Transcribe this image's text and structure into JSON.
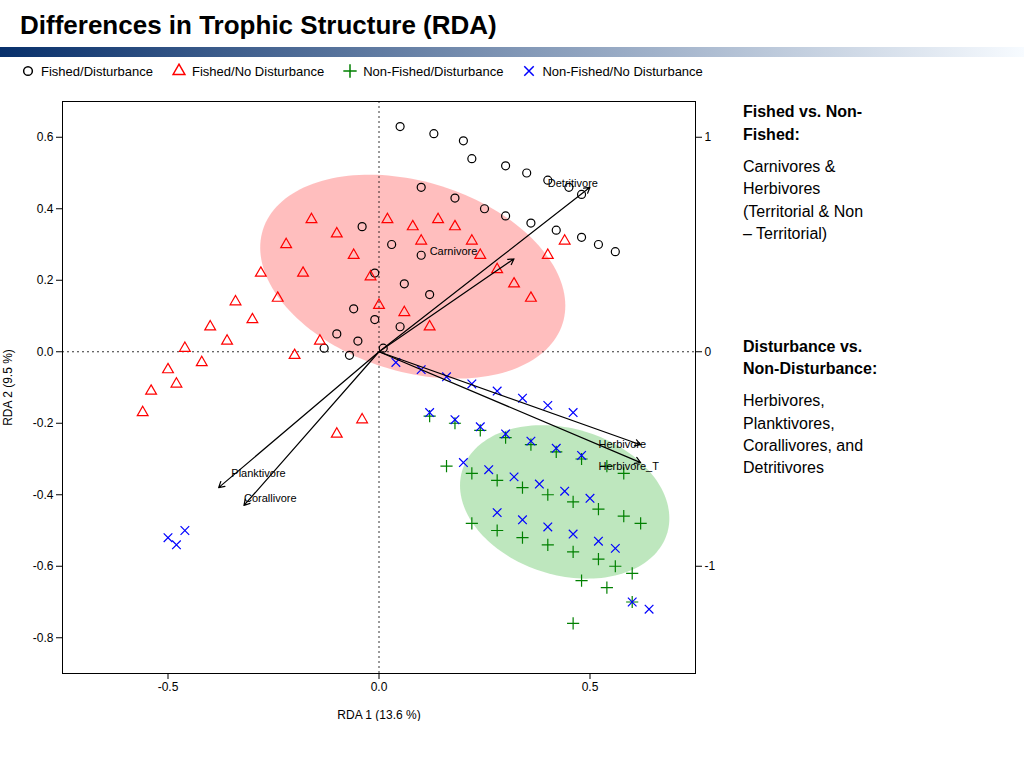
{
  "chart_data": {
    "type": "scatter",
    "title": "Differences in Trophic Structure (RDA)",
    "xlabel": "RDA 1 (13.6 %)",
    "ylabel": "RDA 2 (9.5 %)",
    "xlim": [
      -0.75,
      0.75
    ],
    "ylim": [
      -0.9,
      0.7
    ],
    "xticks": [
      -0.5,
      {
        "value": 0,
        "label": "0.0"
      },
      0.5
    ],
    "yticks": [
      -0.8,
      -0.6,
      -0.4,
      -0.2,
      {
        "value": 0,
        "label": "0.0"
      },
      0.2,
      0.4,
      0.6
    ],
    "y2lim": [
      -0.9,
      0.7
    ],
    "y2ticks": [
      {
        "value": 0.6,
        "label": "1"
      },
      0,
      {
        "value": -0.6,
        "label": "-1"
      }
    ],
    "grid": false,
    "legend": "upper left",
    "reference_lines": {
      "x": [
        0
      ],
      "y": [
        0
      ]
    },
    "series": [
      {
        "name": "Fished/Disturbance",
        "color": "black",
        "marker": "circle",
        "values": [
          [
            0.05,
            0.63
          ],
          [
            0.13,
            0.61
          ],
          [
            0.2,
            0.59
          ],
          [
            0.22,
            0.54
          ],
          [
            0.3,
            0.52
          ],
          [
            0.35,
            0.5
          ],
          [
            0.4,
            0.48
          ],
          [
            0.45,
            0.46
          ],
          [
            0.48,
            0.44
          ],
          [
            0.1,
            0.46
          ],
          [
            0.18,
            0.43
          ],
          [
            0.25,
            0.4
          ],
          [
            0.3,
            0.38
          ],
          [
            0.36,
            0.36
          ],
          [
            0.42,
            0.34
          ],
          [
            0.48,
            0.32
          ],
          [
            0.52,
            0.3
          ],
          [
            0.56,
            0.28
          ],
          [
            -0.04,
            0.35
          ],
          [
            0.03,
            0.3
          ],
          [
            0.1,
            0.27
          ],
          [
            -0.01,
            0.22
          ],
          [
            0.06,
            0.19
          ],
          [
            0.12,
            0.16
          ],
          [
            -0.06,
            0.12
          ],
          [
            -0.01,
            0.09
          ],
          [
            0.05,
            0.07
          ],
          [
            -0.1,
            0.05
          ],
          [
            -0.05,
            0.03
          ],
          [
            0.01,
            0.01
          ],
          [
            -0.13,
            0.01
          ],
          [
            -0.07,
            -0.01
          ]
        ]
      },
      {
        "name": "Fished/No Disturbance",
        "color": "red",
        "marker": "triangle",
        "values": [
          [
            -0.16,
            0.37
          ],
          [
            -0.22,
            0.3
          ],
          [
            -0.28,
            0.22
          ],
          [
            -0.34,
            0.14
          ],
          [
            -0.4,
            0.07
          ],
          [
            -0.46,
            0.01
          ],
          [
            -0.5,
            -0.05
          ],
          [
            -0.54,
            -0.11
          ],
          [
            -0.56,
            -0.17
          ],
          [
            -0.18,
            0.22
          ],
          [
            -0.24,
            0.15
          ],
          [
            -0.3,
            0.09
          ],
          [
            -0.36,
            0.03
          ],
          [
            -0.42,
            -0.03
          ],
          [
            -0.48,
            -0.09
          ],
          [
            -0.1,
            0.33
          ],
          [
            -0.06,
            0.27
          ],
          [
            -0.02,
            0.21
          ],
          [
            0.02,
            0.37
          ],
          [
            0.08,
            0.35
          ],
          [
            0.1,
            0.31
          ],
          [
            0.14,
            0.37
          ],
          [
            0.18,
            0.35
          ],
          [
            0.22,
            0.31
          ],
          [
            0.24,
            0.27
          ],
          [
            0.28,
            0.23
          ],
          [
            0.32,
            0.19
          ],
          [
            0.36,
            0.15
          ],
          [
            0.4,
            0.27
          ],
          [
            0.44,
            0.31
          ],
          [
            0.0,
            0.13
          ],
          [
            0.06,
            0.11
          ],
          [
            0.12,
            0.07
          ],
          [
            -0.04,
            -0.19
          ],
          [
            -0.1,
            -0.23
          ],
          [
            -0.14,
            0.03
          ],
          [
            -0.2,
            -0.01
          ]
        ]
      },
      {
        "name": "Non-Fished/Disturbance",
        "color": "green",
        "marker": "plus",
        "values": [
          [
            0.12,
            -0.18
          ],
          [
            0.18,
            -0.2
          ],
          [
            0.24,
            -0.22
          ],
          [
            0.3,
            -0.24
          ],
          [
            0.36,
            -0.26
          ],
          [
            0.42,
            -0.28
          ],
          [
            0.48,
            -0.3
          ],
          [
            0.54,
            -0.32
          ],
          [
            0.58,
            -0.34
          ],
          [
            0.16,
            -0.32
          ],
          [
            0.22,
            -0.34
          ],
          [
            0.28,
            -0.36
          ],
          [
            0.34,
            -0.38
          ],
          [
            0.4,
            -0.4
          ],
          [
            0.46,
            -0.42
          ],
          [
            0.52,
            -0.44
          ],
          [
            0.58,
            -0.46
          ],
          [
            0.62,
            -0.48
          ],
          [
            0.22,
            -0.48
          ],
          [
            0.28,
            -0.5
          ],
          [
            0.34,
            -0.52
          ],
          [
            0.4,
            -0.54
          ],
          [
            0.46,
            -0.56
          ],
          [
            0.52,
            -0.58
          ],
          [
            0.56,
            -0.6
          ],
          [
            0.6,
            -0.62
          ],
          [
            0.48,
            -0.64
          ],
          [
            0.54,
            -0.66
          ],
          [
            0.6,
            -0.7
          ],
          [
            0.46,
            -0.76
          ]
        ]
      },
      {
        "name": "Non-Fished/No Disturbance",
        "color": "blue",
        "marker": "times",
        "values": [
          [
            0.04,
            -0.03
          ],
          [
            0.1,
            -0.05
          ],
          [
            0.16,
            -0.07
          ],
          [
            0.22,
            -0.09
          ],
          [
            0.28,
            -0.11
          ],
          [
            0.34,
            -0.13
          ],
          [
            0.4,
            -0.15
          ],
          [
            0.46,
            -0.17
          ],
          [
            0.12,
            -0.17
          ],
          [
            0.18,
            -0.19
          ],
          [
            0.24,
            -0.21
          ],
          [
            0.3,
            -0.23
          ],
          [
            0.36,
            -0.25
          ],
          [
            0.42,
            -0.27
          ],
          [
            0.48,
            -0.29
          ],
          [
            0.2,
            -0.31
          ],
          [
            0.26,
            -0.33
          ],
          [
            0.32,
            -0.35
          ],
          [
            0.38,
            -0.37
          ],
          [
            0.44,
            -0.39
          ],
          [
            0.5,
            -0.41
          ],
          [
            0.28,
            -0.45
          ],
          [
            0.34,
            -0.47
          ],
          [
            0.4,
            -0.49
          ],
          [
            0.46,
            -0.51
          ],
          [
            0.52,
            -0.53
          ],
          [
            0.56,
            -0.55
          ],
          [
            0.6,
            -0.7
          ],
          [
            0.64,
            -0.72
          ],
          [
            -0.46,
            -0.5
          ],
          [
            -0.5,
            -0.52
          ],
          [
            -0.48,
            -0.54
          ]
        ]
      }
    ],
    "ellipses": [
      {
        "cx": 0.08,
        "cy": 0.21,
        "width": 0.76,
        "height": 0.52,
        "angle": -25,
        "color": "#ff4444"
      },
      {
        "cx": 0.44,
        "cy": -0.42,
        "width": 0.52,
        "height": 0.4,
        "angle": -28,
        "color": "#44bb44"
      }
    ],
    "arrow_origin": [
      0,
      0
    ],
    "arrows": [
      {
        "x": 0.32,
        "y": 0.26,
        "label": "Carnivore",
        "label_x": 0.12,
        "label_y": 0.28
      },
      {
        "x": 0.5,
        "y": 0.46,
        "label": "Detritivore",
        "label_x": 0.4,
        "label_y": 0.47
      },
      {
        "x": 0.62,
        "y": -0.26,
        "label": "Herbivore",
        "label_x": 0.52,
        "label_y": -0.26
      },
      {
        "x": 0.62,
        "y": -0.31,
        "label": "Herbivore_T",
        "label_x": 0.52,
        "label_y": -0.32
      },
      {
        "x": -0.38,
        "y": -0.38,
        "label": "Planktivore",
        "label_x": -0.35,
        "label_y": -0.34
      },
      {
        "x": -0.32,
        "y": -0.43,
        "label": "Corallivore",
        "label_x": -0.32,
        "label_y": -0.41
      }
    ],
    "annotations": [
      {
        "heading": "Fished vs. Non-\nFished:",
        "text": "Carnivores &\nHerbivores\n(Territorial & Non\n– Territorial)"
      },
      {
        "heading": "Disturbance vs.\nNon-Disturbance:",
        "text": "Herbivores,\nPlanktivores,\nCorallivores, and\nDetritivores"
      }
    ]
  }
}
